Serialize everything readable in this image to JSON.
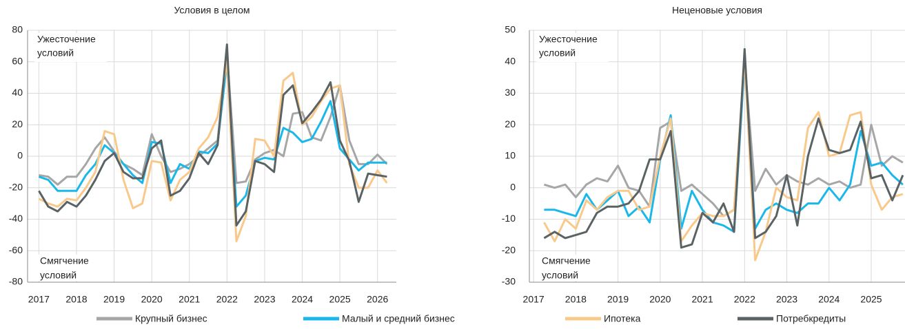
{
  "chart_data": [
    {
      "type": "line",
      "title": "Условия в целом",
      "annotations": {
        "top": [
          "Ужесточение",
          "условий"
        ],
        "bottom": [
          "Смягчение",
          "условий"
        ]
      },
      "x": [
        2017,
        2017.25,
        2017.5,
        2017.75,
        2018,
        2018.25,
        2018.5,
        2018.75,
        2019,
        2019.25,
        2019.5,
        2019.75,
        2020,
        2020.25,
        2020.5,
        2020.75,
        2021,
        2021.25,
        2021.5,
        2021.75,
        2022,
        2022.25,
        2022.5,
        2022.75,
        2023,
        2023.25,
        2023.5,
        2023.75,
        2024,
        2024.25,
        2024.5,
        2024.75,
        2025,
        2025.25,
        2025.5,
        2025.75,
        2026,
        2026.25
      ],
      "series": [
        {
          "color": "#a6a6a6",
          "values": [
            -12,
            -13,
            -18,
            -13,
            -13,
            -5,
            5,
            12,
            3,
            -5,
            -8,
            -12,
            14,
            0,
            -10,
            -8,
            -5,
            0,
            5,
            10,
            65,
            -17,
            -16,
            -2,
            2,
            4,
            0,
            27,
            28,
            12,
            10,
            25,
            45,
            10,
            -5,
            -5,
            1,
            -5
          ]
        },
        {
          "color": "#1ab7ea",
          "values": [
            -13,
            -15,
            -22,
            -22,
            -22,
            -12,
            -5,
            7,
            2,
            -5,
            -12,
            -17,
            9,
            8,
            -17,
            -5,
            -8,
            3,
            2,
            8,
            60,
            -32,
            -25,
            -3,
            -1,
            -2,
            18,
            15,
            9,
            11,
            22,
            35,
            5,
            -2,
            -9,
            -4,
            -4,
            -4
          ]
        },
        {
          "color": "#f9c98b",
          "values": [
            -27,
            -30,
            -32,
            -27,
            -28,
            -20,
            -10,
            16,
            14,
            -15,
            -33,
            -30,
            -3,
            -4,
            -28,
            -15,
            -10,
            5,
            12,
            25,
            60,
            -54,
            -38,
            11,
            10,
            0,
            48,
            53,
            20,
            25,
            35,
            43,
            45,
            -5,
            -20,
            -20,
            -9,
            -17
          ]
        },
        {
          "color": "#5a6264",
          "values": [
            -22,
            -32,
            -35,
            -29,
            -32,
            -25,
            -15,
            -3,
            2,
            -10,
            -14,
            -14,
            5,
            10,
            -25,
            -22,
            -14,
            2,
            -5,
            7,
            71,
            -44,
            -35,
            -3,
            -5,
            -10,
            39,
            45,
            21,
            28,
            36,
            47,
            10,
            -3,
            -29,
            -11,
            -12,
            -13
          ]
        }
      ],
      "xlim": [
        2016.7,
        2026.5
      ],
      "xticks": [
        2017,
        2018,
        2019,
        2020,
        2021,
        2022,
        2023,
        2024,
        2025,
        2026
      ],
      "ylim": [
        -80,
        80
      ],
      "yticks": [
        -80,
        -60,
        -40,
        -20,
        0,
        20,
        40,
        60,
        80
      ],
      "grid": true
    },
    {
      "type": "line",
      "title": "Неценовые условия",
      "annotations": {
        "top": [
          "Ужесточение",
          "условий"
        ],
        "bottom": [
          "Смягчение",
          "условий"
        ]
      },
      "x": [
        2017.25,
        2017.5,
        2017.75,
        2018,
        2018.25,
        2018.5,
        2018.75,
        2019,
        2019.25,
        2019.5,
        2019.75,
        2020,
        2020.25,
        2020.5,
        2020.75,
        2021,
        2021.25,
        2021.5,
        2021.75,
        2022,
        2022.25,
        2022.5,
        2022.75,
        2023,
        2023.25,
        2023.5,
        2023.75,
        2024,
        2024.25,
        2024.5,
        2024.75,
        2025,
        2025.25,
        2025.5,
        2025.75
      ],
      "series": [
        {
          "color": "#a6a6a6",
          "values": [
            1,
            0,
            1,
            -3,
            1,
            3,
            2,
            7,
            0,
            -1,
            -6,
            19,
            21,
            -1,
            1,
            -2,
            -5,
            -9,
            -7,
            40,
            -1,
            6,
            1,
            4,
            2,
            1,
            3,
            1,
            2,
            0,
            1,
            20,
            7,
            10,
            8
          ]
        },
        {
          "color": "#1ab7ea",
          "values": [
            -7,
            -7,
            -8,
            -9,
            -2,
            -7,
            -4,
            -1,
            -9,
            -6,
            -11,
            9,
            23,
            -13,
            -1,
            -7,
            -11,
            -12,
            -14,
            40,
            -13,
            -7,
            -5,
            -7,
            -8,
            -5,
            -5,
            0,
            -4,
            1,
            18,
            7,
            8,
            4,
            1
          ]
        },
        {
          "color": "#f9c98b",
          "values": [
            -11,
            -17,
            -10,
            -13,
            -4,
            -7,
            -3,
            -1,
            -1,
            -7,
            -6,
            10,
            22,
            -17,
            -12,
            -8,
            -9,
            -9,
            -7,
            41,
            -23,
            -14,
            0,
            -3,
            -4,
            19,
            24,
            10,
            11,
            23,
            24,
            1,
            -7,
            -3,
            -2
          ]
        },
        {
          "color": "#5a6264",
          "values": [
            -16,
            -14,
            -16,
            -15,
            -14,
            -8,
            -6,
            -6,
            -5,
            -1,
            9,
            9,
            18,
            -19,
            -18,
            -8,
            -11,
            -5,
            -14,
            44,
            -16,
            -14,
            -9,
            4,
            -12,
            10,
            22,
            12,
            11,
            12,
            21,
            3,
            4,
            -4,
            4
          ]
        }
      ],
      "xlim": [
        2016.9,
        2025.8
      ],
      "xticks": [
        2017,
        2018,
        2019,
        2020,
        2021,
        2022,
        2023,
        2024,
        2025
      ],
      "ylim": [
        -30,
        50
      ],
      "yticks": [
        -30,
        -20,
        -10,
        0,
        10,
        20,
        30,
        40,
        50
      ],
      "grid": true
    }
  ],
  "legend": [
    {
      "name": "Крупный бизнес",
      "color": "#a6a6a6"
    },
    {
      "name": "Малый и средний бизнес",
      "color": "#1ab7ea"
    },
    {
      "name": "Ипотека",
      "color": "#f9c98b"
    },
    {
      "name": "Потребкредиты",
      "color": "#5a6264"
    }
  ]
}
